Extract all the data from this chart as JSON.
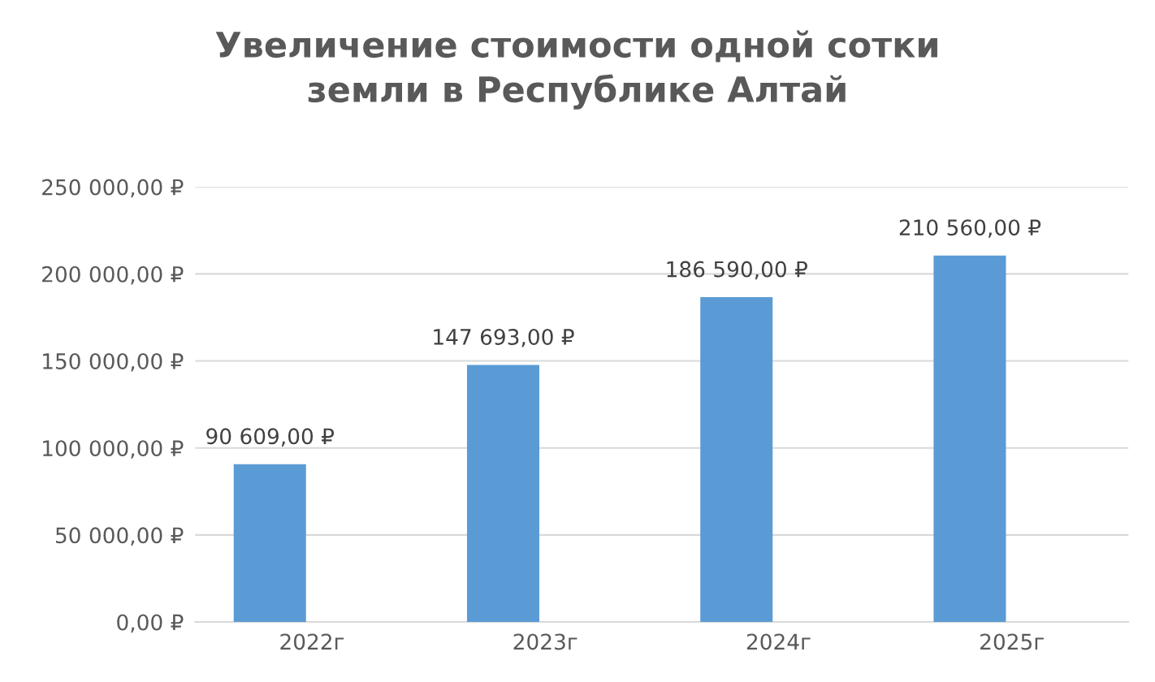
{
  "chart_data": {
    "type": "bar",
    "title": "Увеличение стоимости одной сотки\nземли в Республике Алтай",
    "categories": [
      "2022г",
      "2023г",
      "2024г",
      "2025г"
    ],
    "values": [
      90609,
      147693,
      186590,
      210560
    ],
    "value_labels": [
      "90 609,00 ₽",
      "147 693,00 ₽",
      "186 590,00 ₽",
      "210 560,00 ₽"
    ],
    "color": "#5b9bd5",
    "ylim": [
      0,
      250000
    ],
    "yticks": [
      {
        "value": 0,
        "label": "0,00 ₽"
      },
      {
        "value": 50000,
        "label": "50 000,00 ₽"
      },
      {
        "value": 100000,
        "label": "100 000,00 ₽"
      },
      {
        "value": 150000,
        "label": "150 000,00 ₽"
      },
      {
        "value": 200000,
        "label": "200 000,00 ₽"
      },
      {
        "value": 250000,
        "label": "250 000,00 ₽"
      }
    ],
    "grid": "y"
  }
}
